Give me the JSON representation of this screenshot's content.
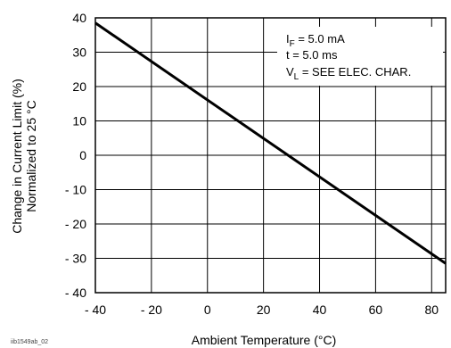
{
  "chart_data": {
    "type": "line",
    "xlabel": "Ambient Temperature (°C)",
    "ylabel_line1": "Change in Current Limit (%)",
    "ylabel_line2": "Normalized to 25 °C",
    "xlim": [
      -40,
      85
    ],
    "ylim": [
      -40,
      40
    ],
    "x_ticks": [
      -40,
      -20,
      0,
      20,
      40,
      60,
      80
    ],
    "y_ticks": [
      40,
      30,
      20,
      10,
      0,
      -10,
      -20,
      -30,
      -40
    ],
    "x_tick_labels": [
      "- 40",
      "- 20",
      "0",
      "20",
      "40",
      "60",
      "80"
    ],
    "y_tick_labels": [
      "40",
      "30",
      "20",
      "10",
      "0",
      "- 10",
      "- 20",
      "- 30",
      "- 40"
    ],
    "grid": true,
    "series": [
      {
        "x": [
          -40,
          85
        ],
        "y": [
          38.5,
          -31.5
        ]
      }
    ],
    "annotations": {
      "line1_main": "I",
      "line1_sub": "F",
      "line1_rest": " = 5.0 mA",
      "line2": "t = 5.0 ms",
      "line3_main": "V",
      "line3_sub": "L",
      "line3_rest": " = SEE ELEC. CHAR.",
      "placement": "top-right"
    },
    "figure_id": "iib1549ab_02"
  }
}
